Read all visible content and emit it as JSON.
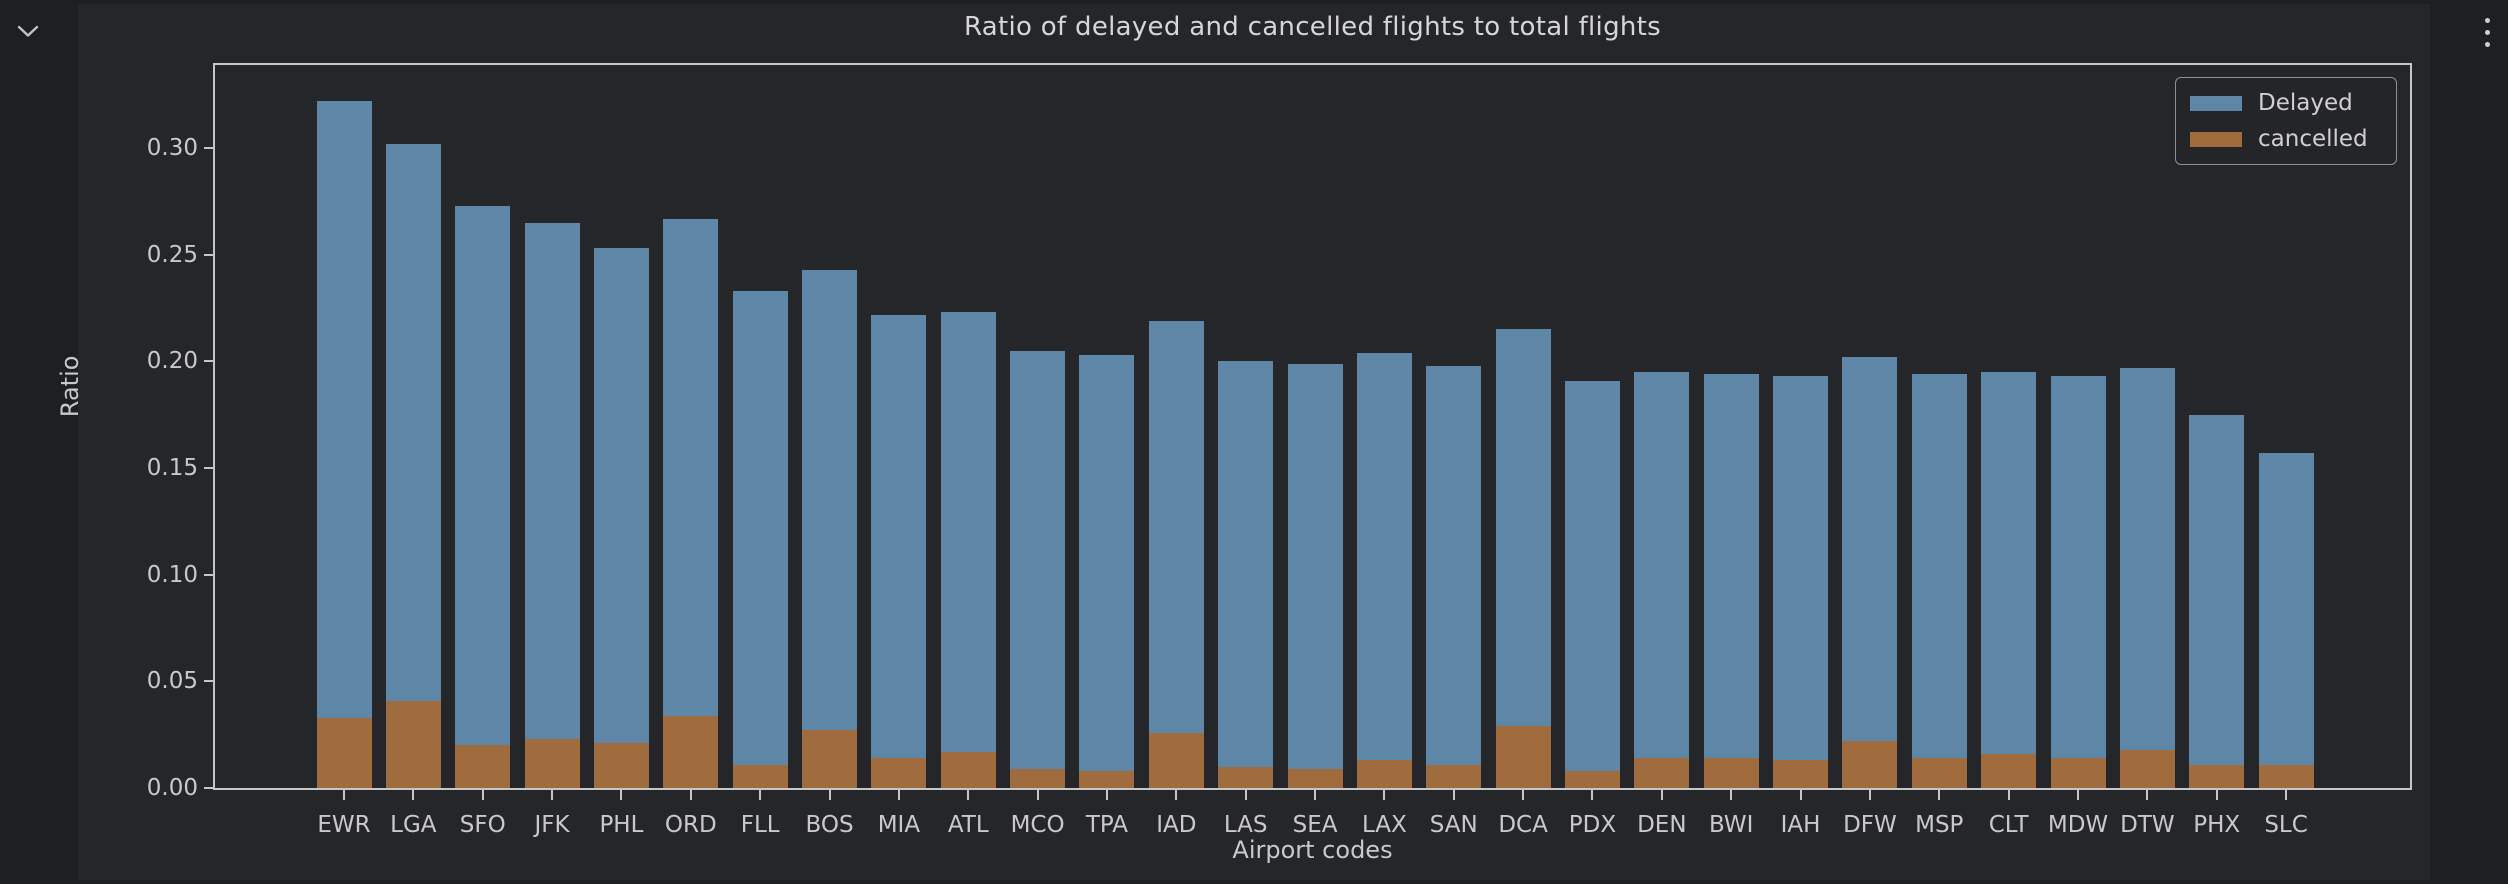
{
  "output_cell": {
    "collapse_icon": "chevron-down",
    "more_actions_icon": "kebab-menu"
  },
  "colors": {
    "page_bg": "#1d1f22",
    "figure_bg": "#242629",
    "axis": "#c6c6c6",
    "text": "#c9c9c9",
    "delayed": "#5e86a6",
    "cancelled": "#a06c3e"
  },
  "chart_data": {
    "type": "bar",
    "stacked": true,
    "title": "Ratio of delayed and cancelled flights to total flights",
    "xlabel": "Airport codes",
    "ylabel": "Ratio",
    "ylim": [
      0,
      0.339
    ],
    "grid": false,
    "legend_position": "upper right",
    "y_ticks": [
      0.0,
      0.05,
      0.1,
      0.15,
      0.2,
      0.25,
      0.3
    ],
    "y_tick_labels": [
      "0.00",
      "0.05",
      "0.10",
      "0.15",
      "0.20",
      "0.25",
      "0.30"
    ],
    "categories": [
      "EWR",
      "LGA",
      "SFO",
      "JFK",
      "PHL",
      "ORD",
      "FLL",
      "BOS",
      "MIA",
      "ATL",
      "MCO",
      "TPA",
      "IAD",
      "LAS",
      "SEA",
      "LAX",
      "SAN",
      "DCA",
      "PDX",
      "DEN",
      "BWI",
      "IAH",
      "DFW",
      "MSP",
      "CLT",
      "MDW",
      "DTW",
      "PHX",
      "SLC"
    ],
    "series": [
      {
        "name": "Delayed",
        "color": "#5e86a6",
        "values": [
          0.289,
          0.261,
          0.253,
          0.242,
          0.232,
          0.233,
          0.222,
          0.216,
          0.208,
          0.206,
          0.196,
          0.195,
          0.193,
          0.19,
          0.19,
          0.191,
          0.187,
          0.186,
          0.183,
          0.181,
          0.18,
          0.18,
          0.18,
          0.18,
          0.179,
          0.179,
          0.179,
          0.164,
          0.146
        ]
      },
      {
        "name": "cancelled",
        "color": "#a06c3e",
        "values": [
          0.033,
          0.041,
          0.02,
          0.023,
          0.021,
          0.034,
          0.011,
          0.027,
          0.014,
          0.017,
          0.009,
          0.008,
          0.026,
          0.01,
          0.009,
          0.013,
          0.011,
          0.029,
          0.008,
          0.014,
          0.014,
          0.013,
          0.022,
          0.014,
          0.016,
          0.014,
          0.018,
          0.011,
          0.011
        ]
      }
    ],
    "stack_totals": [
      0.322,
      0.302,
      0.273,
      0.265,
      0.253,
      0.267,
      0.233,
      0.243,
      0.222,
      0.223,
      0.205,
      0.203,
      0.219,
      0.2,
      0.199,
      0.204,
      0.198,
      0.215,
      0.191,
      0.195,
      0.194,
      0.193,
      0.202,
      0.194,
      0.195,
      0.193,
      0.197,
      0.175,
      0.157
    ]
  }
}
